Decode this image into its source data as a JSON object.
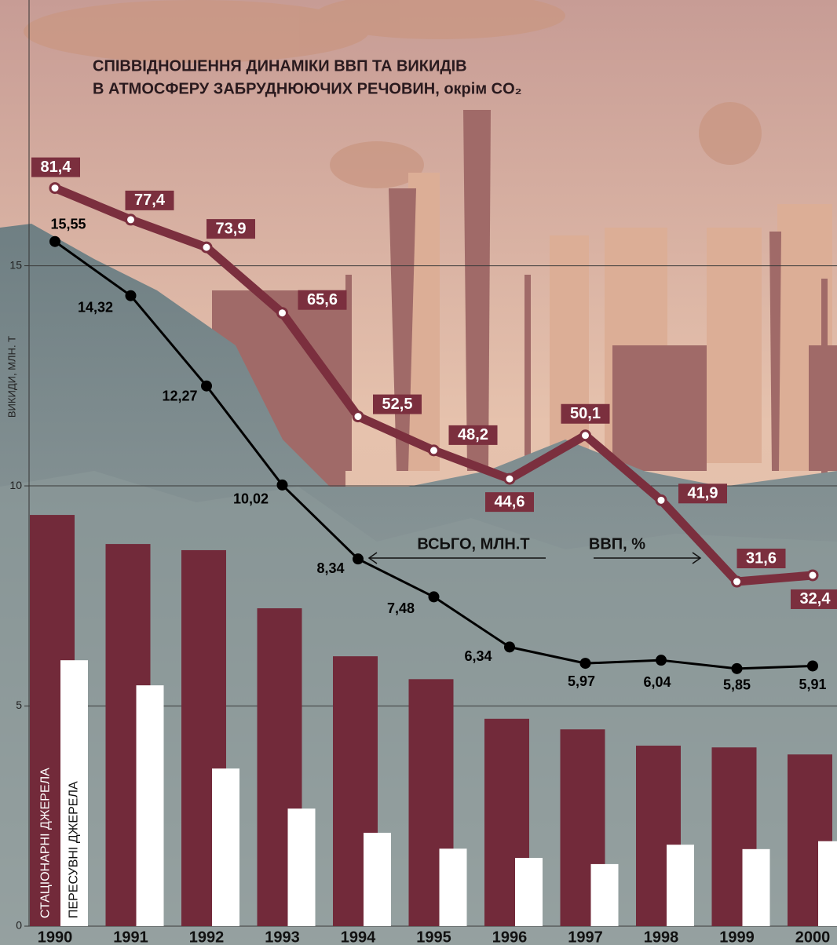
{
  "chart_data": {
    "type": "combo",
    "title": [
      "СПІВВІДНОШЕННЯ ДИНАМІКИ ВВП ТА ВИКИДІВ",
      "В АТМОСФЕРУ ЗАБРУДНЮЮЧИХ РЕЧОВИН, окрім CO₂"
    ],
    "y_label": "ВИКИДИ, МЛН. Т",
    "categories": [
      "1990",
      "1991",
      "1992",
      "1993",
      "1994",
      "1995",
      "1996",
      "1997",
      "1998",
      "1999",
      "2000"
    ],
    "series": [
      {
        "name": "СТАЦІОНАРНІ ДЖЕРЕЛА",
        "type": "bar",
        "color": "#722a3a",
        "values": [
          9.34,
          8.68,
          8.54,
          7.22,
          6.13,
          5.61,
          4.71,
          4.47,
          4.1,
          4.06,
          3.9
        ]
      },
      {
        "name": "ПЕРЕСУВНІ ДЖЕРЕЛА",
        "type": "bar",
        "color": "#ffffff",
        "values": [
          6.04,
          5.47,
          3.58,
          2.67,
          2.12,
          1.76,
          1.55,
          1.41,
          1.85,
          1.75,
          1.93
        ]
      },
      {
        "name": "ВСЬГО, МЛН.Т",
        "type": "line",
        "color": "#000000",
        "values": [
          15.55,
          14.32,
          12.27,
          10.02,
          8.34,
          7.48,
          6.34,
          5.97,
          6.04,
          5.85,
          5.91
        ],
        "value_labels": [
          "15,55",
          "14,32",
          "12,27",
          "10,02",
          "8,34",
          "7,48",
          "6,34",
          "5,97",
          "6,04",
          "5,85",
          "5,91"
        ]
      },
      {
        "name": "ВВП, %",
        "type": "line",
        "axis": "y2",
        "color": "#7b2f3e",
        "values": [
          81.4,
          77.4,
          73.9,
          65.6,
          52.5,
          48.2,
          44.6,
          50.1,
          41.9,
          31.6,
          32.4
        ],
        "value_labels": [
          "81,4",
          "77,4",
          "73,9",
          "65,6",
          "52,5",
          "48,2",
          "44,6",
          "50,1",
          "41,9",
          "31,6",
          "32,4"
        ]
      }
    ],
    "ylim": [
      0,
      21
    ],
    "yticks": [
      0,
      5,
      10,
      15
    ],
    "y2lim": [
      -12,
      105
    ],
    "grid": true
  }
}
